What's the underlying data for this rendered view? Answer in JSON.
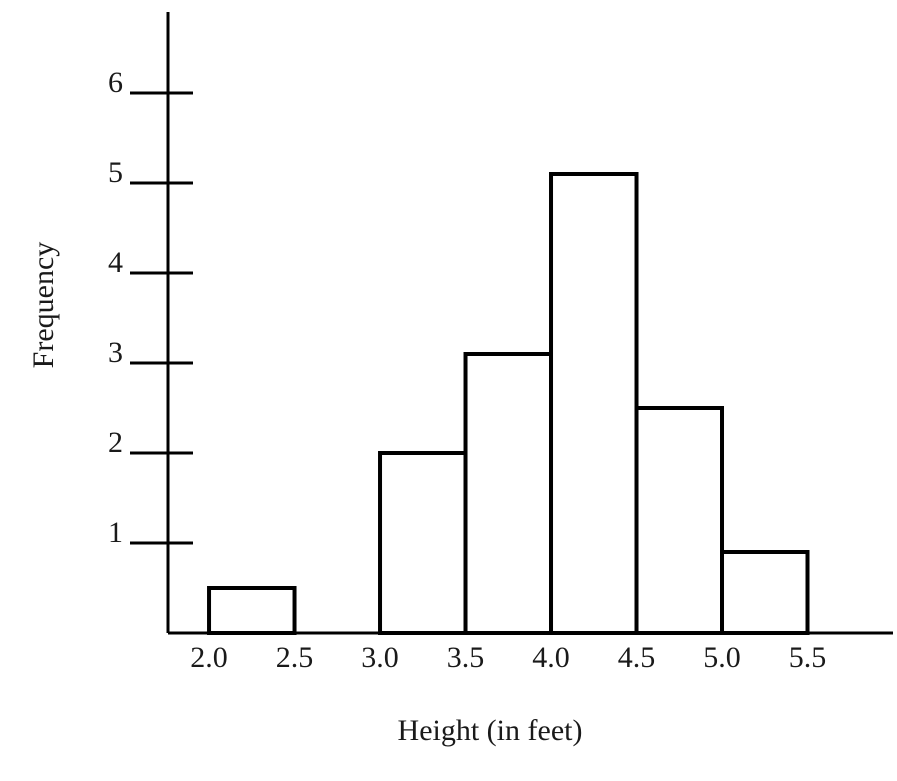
{
  "chart_data": {
    "type": "histogram",
    "x_label": "Height (in feet)",
    "y_label": "Frequency",
    "bins": [
      2.0,
      2.5,
      3.0,
      3.5,
      4.0,
      4.5,
      5.0,
      5.5
    ],
    "counts": [
      0.5,
      0,
      2,
      3.1,
      5.1,
      2.5,
      0.9
    ],
    "color": "#ffffff",
    "edge_color": "#000000",
    "xlim": [
      1.76,
      6.0
    ],
    "ylim": [
      0,
      6.9
    ],
    "xticks": [
      {
        "value": 2,
        "label": "2.0"
      },
      {
        "value": 2.5,
        "label": "2.5"
      },
      {
        "value": 3,
        "label": "3.0"
      },
      {
        "value": 3.5,
        "label": "3.5"
      },
      {
        "value": 4,
        "label": "4.0"
      },
      {
        "value": 4.5,
        "label": "4.5"
      },
      {
        "value": 5,
        "label": "5.0"
      },
      {
        "value": 5.5,
        "label": "5.5"
      }
    ],
    "yticks": [
      1,
      2,
      3,
      4,
      5,
      6
    ]
  }
}
